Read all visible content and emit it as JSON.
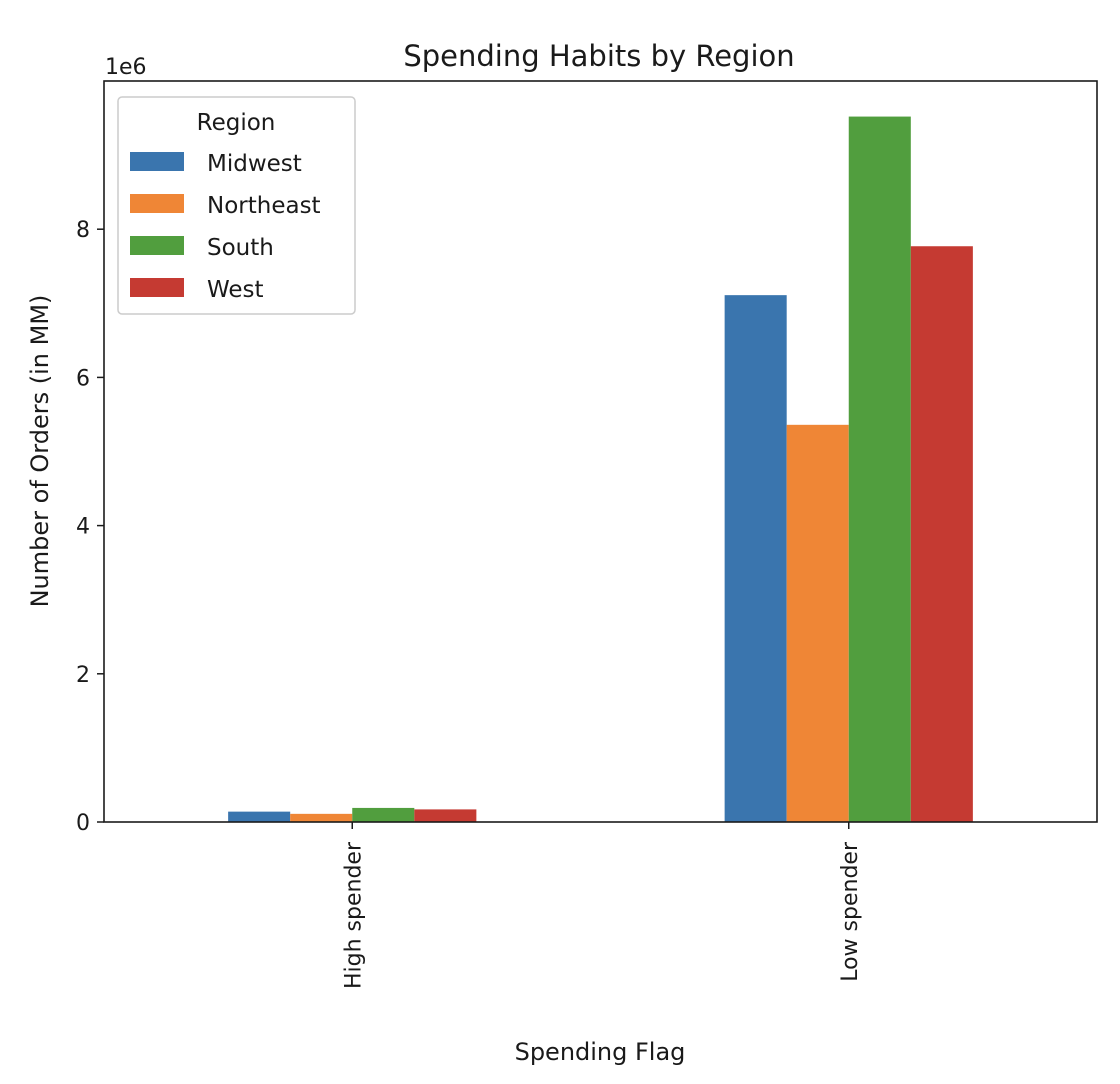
{
  "chart_data": {
    "type": "bar",
    "title": "Spending Habits by Region",
    "xlabel": "Spending Flag",
    "ylabel": "Number of Orders (in MM)",
    "y_offset_text": "1e6",
    "categories": [
      "High spender",
      "Low spender"
    ],
    "series": [
      {
        "name": "Midwest",
        "values": [
          140000,
          7110000
        ],
        "color": "#3a75ae"
      },
      {
        "name": "Northeast",
        "values": [
          110000,
          5360000
        ],
        "color": "#ef8636"
      },
      {
        "name": "South",
        "values": [
          190000,
          9520000
        ],
        "color": "#519e3e"
      },
      {
        "name": "West",
        "values": [
          170000,
          7770000
        ],
        "color": "#c53a32"
      }
    ],
    "ylim": [
      0,
      10000000
    ],
    "yticks": [
      0,
      2000000,
      4000000,
      6000000,
      8000000
    ],
    "ytick_labels": [
      "0",
      "2",
      "4",
      "6",
      "8"
    ],
    "legend": {
      "title": "Region",
      "position": "upper-left"
    },
    "grid": false
  }
}
